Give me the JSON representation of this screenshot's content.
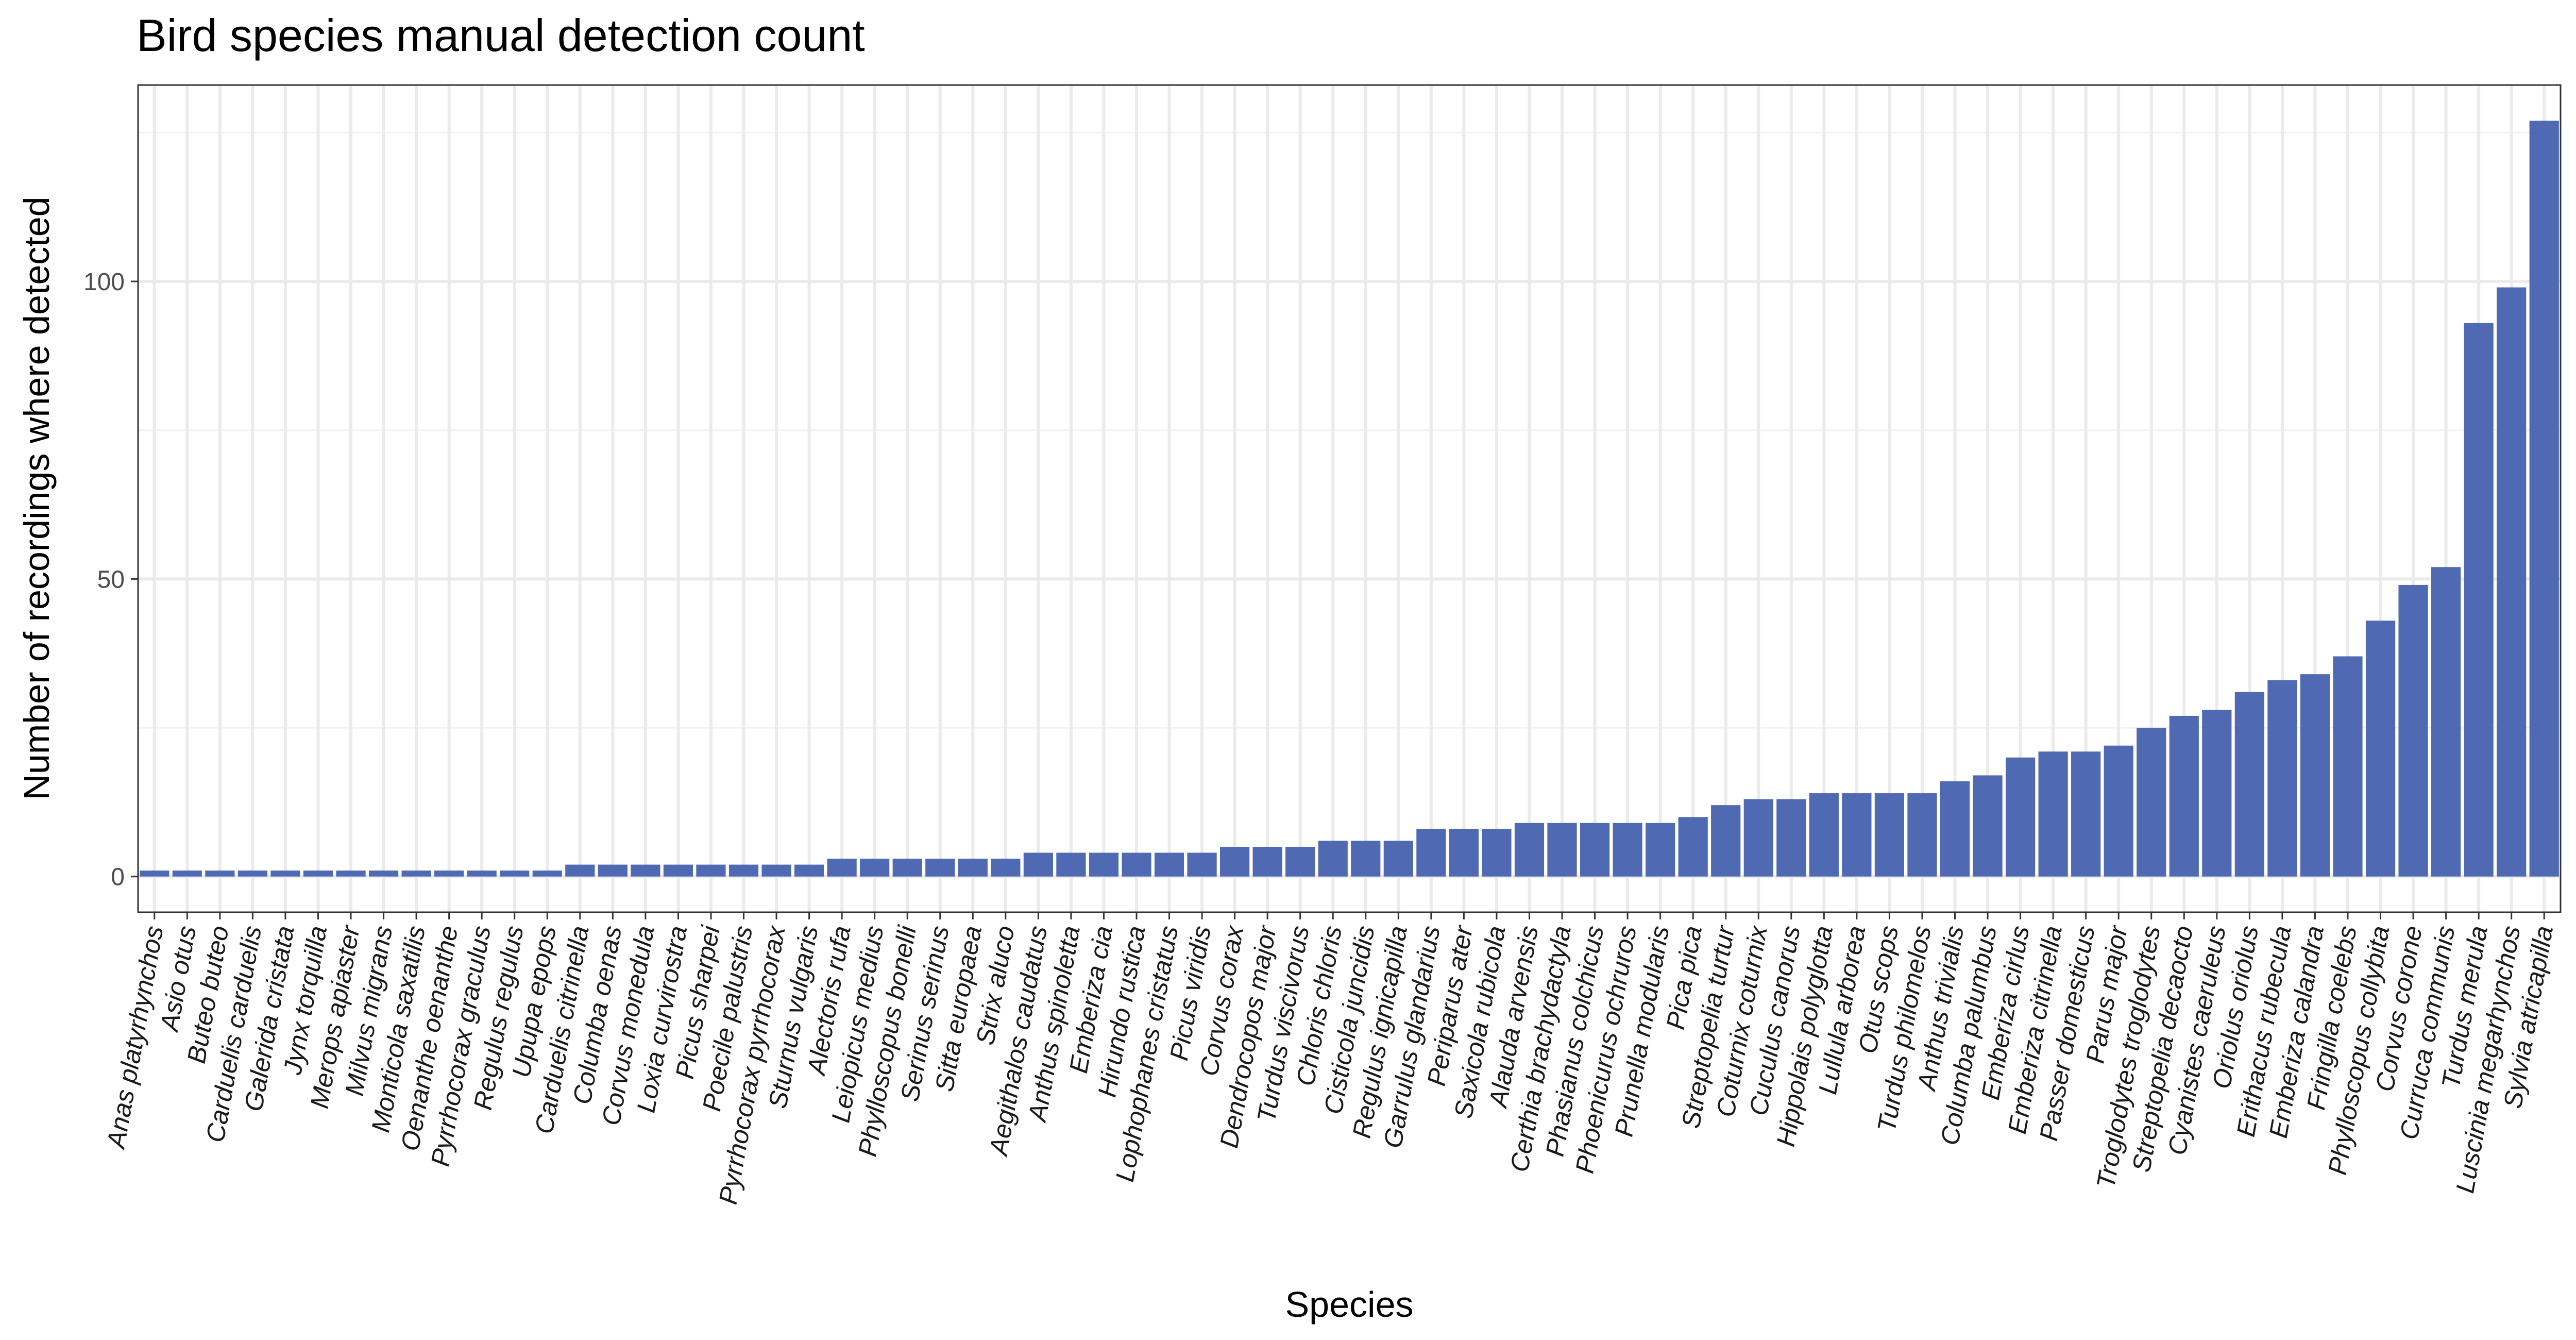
{
  "chart_data": {
    "type": "bar",
    "title": "Bird species manual detection count",
    "xlabel": "Species",
    "ylabel": "Number of recordings where detected",
    "ylim": [
      -6,
      133
    ],
    "yticks": [
      0,
      50,
      100
    ],
    "grid": true,
    "bar_color": "#4f6ab3",
    "categories": [
      "Anas platyrhynchos",
      "Asio otus",
      "Buteo buteo",
      "Carduelis carduelis",
      "Galerida cristata",
      "Jynx torquilla",
      "Merops apiaster",
      "Milvus migrans",
      "Monticola saxatilis",
      "Oenanthe oenanthe",
      "Pyrrhocorax graculus",
      "Regulus regulus",
      "Upupa epops",
      "Carduelis citrinella",
      "Columba oenas",
      "Corvus monedula",
      "Loxia curvirostra",
      "Picus sharpei",
      "Poecile palustris",
      "Pyrrhocorax pyrrhocorax",
      "Sturnus vulgaris",
      "Alectoris rufa",
      "Leiopicus medius",
      "Phylloscopus bonelli",
      "Serinus serinus",
      "Sitta europaea",
      "Strix aluco",
      "Aegithalos caudatus",
      "Anthus spinoletta",
      "Emberiza cia",
      "Hirundo rustica",
      "Lophophanes cristatus",
      "Picus viridis",
      "Corvus corax",
      "Dendrocopos major",
      "Turdus viscivorus",
      "Chloris chloris",
      "Cisticola juncidis",
      "Regulus ignicapilla",
      "Garrulus glandarius",
      "Periparus ater",
      "Saxicola rubicola",
      "Alauda arvensis",
      "Certhia brachydactyla",
      "Phasianus colchicus",
      "Phoenicurus ochruros",
      "Prunella modularis",
      "Pica pica",
      "Streptopelia turtur",
      "Coturnix coturnix",
      "Cuculus canorus",
      "Hippolais polyglotta",
      "Lullula arborea",
      "Otus scops",
      "Turdus philomelos",
      "Anthus trivialis",
      "Columba palumbus",
      "Emberiza cirlus",
      "Emberiza citrinella",
      "Passer domesticus",
      "Parus major",
      "Troglodytes troglodytes",
      "Streptopelia decaocto",
      "Cyanistes caeruleus",
      "Oriolus oriolus",
      "Erithacus rubecula",
      "Emberiza calandra",
      "Fringilla coelebs",
      "Phylloscopus collybita",
      "Corvus corone",
      "Curruca communis",
      "Turdus merula",
      "Luscinia megarhynchos",
      "Sylvia atricapilla"
    ],
    "values": [
      1,
      1,
      1,
      1,
      1,
      1,
      1,
      1,
      1,
      1,
      1,
      1,
      1,
      2,
      2,
      2,
      2,
      2,
      2,
      2,
      2,
      3,
      3,
      3,
      3,
      3,
      3,
      4,
      4,
      4,
      4,
      4,
      4,
      5,
      5,
      5,
      6,
      6,
      6,
      8,
      8,
      8,
      9,
      9,
      9,
      9,
      9,
      10,
      12,
      13,
      13,
      14,
      14,
      14,
      14,
      16,
      17,
      20,
      21,
      21,
      22,
      25,
      27,
      28,
      31,
      33,
      34,
      37,
      43,
      49,
      52,
      93,
      99,
      127
    ]
  }
}
